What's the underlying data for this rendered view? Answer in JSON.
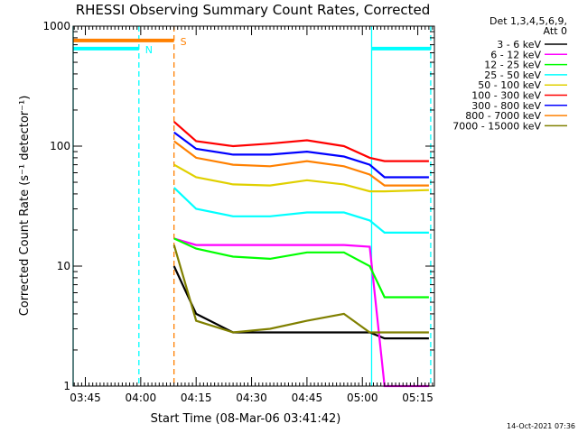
{
  "chart_data": {
    "type": "line",
    "title": "RHESSI Observing Summary Count Rates, Corrected",
    "xlabel": "Start Time (08-Mar-06 03:41:42)",
    "ylabel": "Corrected Count Rate (s⁻¹ detector⁻¹)",
    "yscale": "log",
    "ylim": [
      1,
      1000
    ],
    "xlim": [
      "03:41:42",
      "05:19:30"
    ],
    "x_ticks": [
      "03:45",
      "04:00",
      "04:15",
      "04:30",
      "04:45",
      "05:00",
      "05:15"
    ],
    "y_ticks": [
      {
        "value": 1,
        "label": "1"
      },
      {
        "value": 10,
        "label": "10"
      },
      {
        "value": 100,
        "label": "100"
      },
      {
        "value": 1000,
        "label": "1000"
      }
    ],
    "legend": {
      "position": "right",
      "header": [
        "Det 1,3,4,5,6,9,",
        "Att 0"
      ]
    },
    "x": [
      "04:09",
      "04:15",
      "04:25",
      "04:35",
      "04:45",
      "04:55",
      "05:02",
      "05:06",
      "05:18"
    ],
    "series": [
      {
        "name": "3 - 6 keV",
        "color": "#000000",
        "values": [
          10,
          4,
          2.8,
          2.8,
          2.8,
          2.8,
          2.8,
          2.5,
          2.5
        ]
      },
      {
        "name": "6 - 12 keV",
        "color": "#ff00ff",
        "values": [
          17,
          15,
          15,
          15,
          15,
          15,
          14.5,
          1,
          1
        ]
      },
      {
        "name": "12 - 25 keV",
        "color": "#00ff00",
        "values": [
          17,
          14,
          12,
          11.5,
          13,
          13,
          10,
          5.5,
          5.5
        ]
      },
      {
        "name": "25 - 50 keV",
        "color": "#00ffff",
        "values": [
          45,
          30,
          26,
          26,
          28,
          28,
          24,
          19,
          19
        ]
      },
      {
        "name": "50 - 100 keV",
        "color": "#e0d000",
        "values": [
          70,
          55,
          48,
          47,
          52,
          48,
          42,
          42,
          43
        ]
      },
      {
        "name": "100 - 300 keV",
        "color": "#ff0000",
        "values": [
          160,
          110,
          100,
          105,
          112,
          100,
          80,
          75,
          75
        ]
      },
      {
        "name": "300 - 800 keV",
        "color": "#0000ff",
        "values": [
          130,
          95,
          85,
          85,
          90,
          82,
          70,
          55,
          55
        ]
      },
      {
        "name": "800 - 7000 keV",
        "color": "#ff8000",
        "values": [
          110,
          80,
          70,
          68,
          75,
          68,
          58,
          47,
          47
        ]
      },
      {
        "name": "7000 - 15000 keV",
        "color": "#808000",
        "values": [
          15,
          3.5,
          2.8,
          3,
          3.5,
          4,
          2.8,
          2.8,
          2.8
        ]
      }
    ],
    "flags": [
      {
        "label": "N",
        "color": "#00ffff",
        "from": "03:41:42",
        "to": "03:59:30",
        "level": 650
      },
      {
        "label": "S",
        "color": "#ff8000",
        "from": "03:41:42",
        "to": "04:09:00",
        "level": 760
      }
    ],
    "markers": [
      {
        "time": "03:41:42",
        "color": "#00ffff",
        "style": "solid"
      },
      {
        "time": "03:59:30",
        "color": "#00ffff",
        "style": "dashed"
      },
      {
        "time": "04:09:00",
        "color": "#ff8000",
        "style": "dashed"
      },
      {
        "time": "05:02:30",
        "color": "#00ffff",
        "style": "solid"
      },
      {
        "time": "05:18:30",
        "color": "#00ffff",
        "style": "dashed"
      }
    ],
    "top_right_flag": {
      "color": "#00ffff",
      "from": "05:02:30",
      "to": "05:18:30",
      "level": 650
    }
  },
  "footer": {
    "date_stamp": "14-Oct-2021 07:36"
  }
}
